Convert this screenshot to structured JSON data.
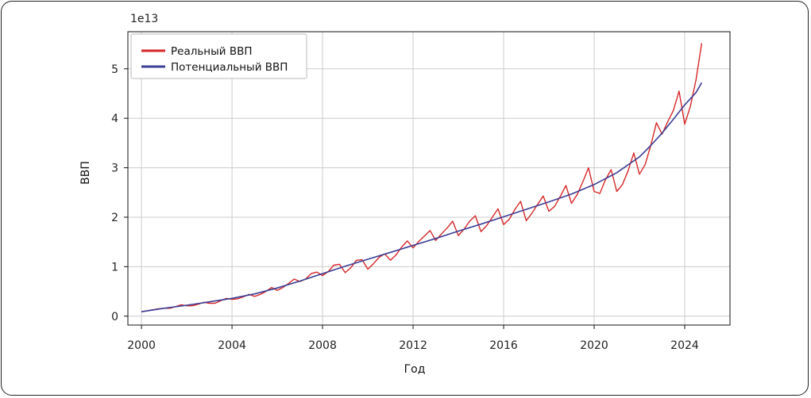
{
  "chart_data": {
    "type": "line",
    "xlabel": "Год",
    "ylabel": "ВВП",
    "offset_label": "1e13",
    "xlim": [
      1999.4,
      2026.0
    ],
    "ylim": [
      -0.18,
      5.75
    ],
    "xticks": [
      2000,
      2004,
      2008,
      2012,
      2016,
      2020,
      2024
    ],
    "yticks": [
      0,
      1,
      2,
      3,
      4,
      5
    ],
    "grid": true,
    "legend_position": "top-left",
    "colors": {
      "real": "#d62728",
      "potential": "#3a3f95"
    },
    "series": [
      {
        "name": "Реальный ВВП",
        "color": "#d62728",
        "points": [
          [
            2000.0,
            0.09
          ],
          [
            2000.25,
            0.11
          ],
          [
            2000.5,
            0.13
          ],
          [
            2000.75,
            0.15
          ],
          [
            2001.0,
            0.16
          ],
          [
            2001.25,
            0.16
          ],
          [
            2001.5,
            0.19
          ],
          [
            2001.75,
            0.23
          ],
          [
            2002.0,
            0.21
          ],
          [
            2002.25,
            0.21
          ],
          [
            2002.5,
            0.24
          ],
          [
            2002.75,
            0.28
          ],
          [
            2003.0,
            0.26
          ],
          [
            2003.25,
            0.26
          ],
          [
            2003.5,
            0.31
          ],
          [
            2003.75,
            0.36
          ],
          [
            2004.0,
            0.34
          ],
          [
            2004.25,
            0.35
          ],
          [
            2004.5,
            0.39
          ],
          [
            2004.75,
            0.44
          ],
          [
            2005.0,
            0.4
          ],
          [
            2005.25,
            0.44
          ],
          [
            2005.5,
            0.5
          ],
          [
            2005.75,
            0.58
          ],
          [
            2006.0,
            0.52
          ],
          [
            2006.25,
            0.58
          ],
          [
            2006.5,
            0.66
          ],
          [
            2006.75,
            0.75
          ],
          [
            2007.0,
            0.7
          ],
          [
            2007.25,
            0.75
          ],
          [
            2007.5,
            0.86
          ],
          [
            2007.75,
            0.89
          ],
          [
            2008.0,
            0.82
          ],
          [
            2008.25,
            0.9
          ],
          [
            2008.5,
            1.03
          ],
          [
            2008.75,
            1.05
          ],
          [
            2009.0,
            0.88
          ],
          [
            2009.25,
            0.98
          ],
          [
            2009.5,
            1.13
          ],
          [
            2009.75,
            1.14
          ],
          [
            2010.0,
            0.95
          ],
          [
            2010.25,
            1.06
          ],
          [
            2010.5,
            1.19
          ],
          [
            2010.75,
            1.26
          ],
          [
            2011.0,
            1.13
          ],
          [
            2011.25,
            1.24
          ],
          [
            2011.5,
            1.4
          ],
          [
            2011.75,
            1.52
          ],
          [
            2012.0,
            1.38
          ],
          [
            2012.25,
            1.51
          ],
          [
            2012.5,
            1.62
          ],
          [
            2012.75,
            1.73
          ],
          [
            2013.0,
            1.53
          ],
          [
            2013.25,
            1.66
          ],
          [
            2013.5,
            1.78
          ],
          [
            2013.75,
            1.92
          ],
          [
            2014.0,
            1.63
          ],
          [
            2014.25,
            1.76
          ],
          [
            2014.5,
            1.92
          ],
          [
            2014.75,
            2.03
          ],
          [
            2015.0,
            1.71
          ],
          [
            2015.25,
            1.83
          ],
          [
            2015.5,
            2.0
          ],
          [
            2015.75,
            2.17
          ],
          [
            2016.0,
            1.85
          ],
          [
            2016.25,
            1.96
          ],
          [
            2016.5,
            2.16
          ],
          [
            2016.75,
            2.32
          ],
          [
            2017.0,
            1.93
          ],
          [
            2017.25,
            2.08
          ],
          [
            2017.5,
            2.26
          ],
          [
            2017.75,
            2.43
          ],
          [
            2018.0,
            2.12
          ],
          [
            2018.25,
            2.22
          ],
          [
            2018.5,
            2.42
          ],
          [
            2018.75,
            2.64
          ],
          [
            2019.0,
            2.28
          ],
          [
            2019.25,
            2.46
          ],
          [
            2019.5,
            2.72
          ],
          [
            2019.75,
            3.0
          ],
          [
            2020.0,
            2.52
          ],
          [
            2020.25,
            2.48
          ],
          [
            2020.5,
            2.76
          ],
          [
            2020.75,
            2.96
          ],
          [
            2021.0,
            2.52
          ],
          [
            2021.25,
            2.66
          ],
          [
            2021.5,
            2.94
          ],
          [
            2021.75,
            3.3
          ],
          [
            2022.0,
            2.87
          ],
          [
            2022.25,
            3.06
          ],
          [
            2022.5,
            3.45
          ],
          [
            2022.75,
            3.91
          ],
          [
            2023.0,
            3.68
          ],
          [
            2023.25,
            3.93
          ],
          [
            2023.5,
            4.16
          ],
          [
            2023.75,
            4.55
          ],
          [
            2024.0,
            3.88
          ],
          [
            2024.25,
            4.24
          ],
          [
            2024.5,
            4.78
          ],
          [
            2024.75,
            5.52
          ]
        ]
      },
      {
        "name": "Потенциальный ВВП",
        "color": "#3a3f95",
        "points": [
          [
            2000.0,
            0.09
          ],
          [
            2001.0,
            0.16
          ],
          [
            2002.0,
            0.22
          ],
          [
            2003.0,
            0.29
          ],
          [
            2004.0,
            0.36
          ],
          [
            2005.0,
            0.45
          ],
          [
            2006.0,
            0.57
          ],
          [
            2007.0,
            0.71
          ],
          [
            2008.0,
            0.86
          ],
          [
            2009.0,
            1.01
          ],
          [
            2010.0,
            1.15
          ],
          [
            2011.0,
            1.29
          ],
          [
            2012.0,
            1.43
          ],
          [
            2013.0,
            1.57
          ],
          [
            2014.0,
            1.72
          ],
          [
            2015.0,
            1.86
          ],
          [
            2016.0,
            2.01
          ],
          [
            2017.0,
            2.16
          ],
          [
            2018.0,
            2.31
          ],
          [
            2019.0,
            2.47
          ],
          [
            2020.0,
            2.66
          ],
          [
            2021.0,
            2.9
          ],
          [
            2022.0,
            3.22
          ],
          [
            2022.5,
            3.45
          ],
          [
            2023.0,
            3.7
          ],
          [
            2023.5,
            3.98
          ],
          [
            2024.0,
            4.27
          ],
          [
            2024.5,
            4.52
          ],
          [
            2024.75,
            4.72
          ]
        ]
      }
    ]
  }
}
